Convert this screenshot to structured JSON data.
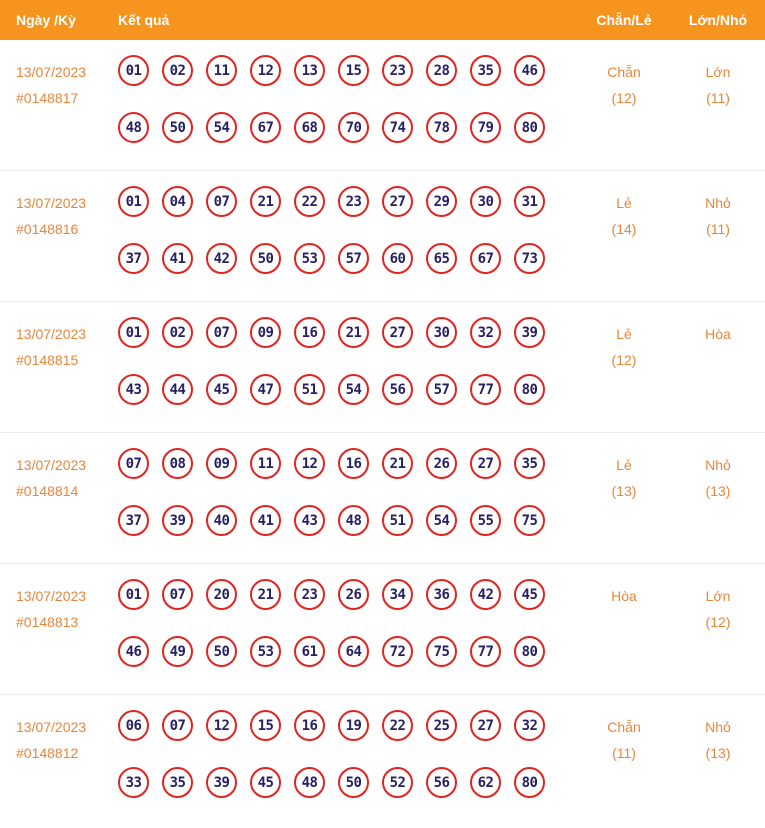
{
  "header": {
    "col_date": "Ngày /Kỳ",
    "col_result": "Kết quả",
    "col_chan_le": "Chẵn/Lẻ",
    "col_lon_nho": "Lớn/Nhỏ"
  },
  "colors": {
    "header_bg": "#F7941D",
    "accent": "#E8853C",
    "ball_border": "#E02420",
    "ball_text": "#262262",
    "divider": "#E9E9E9"
  },
  "rows": [
    {
      "date": "13/07/2023",
      "draw_id": "#0148817",
      "numbers": [
        "01",
        "02",
        "11",
        "12",
        "13",
        "15",
        "23",
        "28",
        "35",
        "46",
        "48",
        "50",
        "54",
        "67",
        "68",
        "70",
        "74",
        "78",
        "79",
        "80"
      ],
      "chan_le": "Chẵn",
      "chan_le_count": "(12)",
      "lon_nho": "Lớn",
      "lon_nho_count": "(11)"
    },
    {
      "date": "13/07/2023",
      "draw_id": "#0148816",
      "numbers": [
        "01",
        "04",
        "07",
        "21",
        "22",
        "23",
        "27",
        "29",
        "30",
        "31",
        "37",
        "41",
        "42",
        "50",
        "53",
        "57",
        "60",
        "65",
        "67",
        "73"
      ],
      "chan_le": "Lẻ",
      "chan_le_count": "(14)",
      "lon_nho": "Nhỏ",
      "lon_nho_count": "(11)"
    },
    {
      "date": "13/07/2023",
      "draw_id": "#0148815",
      "numbers": [
        "01",
        "02",
        "07",
        "09",
        "16",
        "21",
        "27",
        "30",
        "32",
        "39",
        "43",
        "44",
        "45",
        "47",
        "51",
        "54",
        "56",
        "57",
        "77",
        "80"
      ],
      "chan_le": "Lẻ",
      "chan_le_count": "(12)",
      "lon_nho": "Hòa",
      "lon_nho_count": ""
    },
    {
      "date": "13/07/2023",
      "draw_id": "#0148814",
      "numbers": [
        "07",
        "08",
        "09",
        "11",
        "12",
        "16",
        "21",
        "26",
        "27",
        "35",
        "37",
        "39",
        "40",
        "41",
        "43",
        "48",
        "51",
        "54",
        "55",
        "75"
      ],
      "chan_le": "Lẻ",
      "chan_le_count": "(13)",
      "lon_nho": "Nhỏ",
      "lon_nho_count": "(13)"
    },
    {
      "date": "13/07/2023",
      "draw_id": "#0148813",
      "numbers": [
        "01",
        "07",
        "20",
        "21",
        "23",
        "26",
        "34",
        "36",
        "42",
        "45",
        "46",
        "49",
        "50",
        "53",
        "61",
        "64",
        "72",
        "75",
        "77",
        "80"
      ],
      "chan_le": "Hòa",
      "chan_le_count": "",
      "lon_nho": "Lớn",
      "lon_nho_count": "(12)"
    },
    {
      "date": "13/07/2023",
      "draw_id": "#0148812",
      "numbers": [
        "06",
        "07",
        "12",
        "15",
        "16",
        "19",
        "22",
        "25",
        "27",
        "32",
        "33",
        "35",
        "39",
        "45",
        "48",
        "50",
        "52",
        "56",
        "62",
        "80"
      ],
      "chan_le": "Chẵn",
      "chan_le_count": "(11)",
      "lon_nho": "Nhỏ",
      "lon_nho_count": "(13)"
    }
  ]
}
